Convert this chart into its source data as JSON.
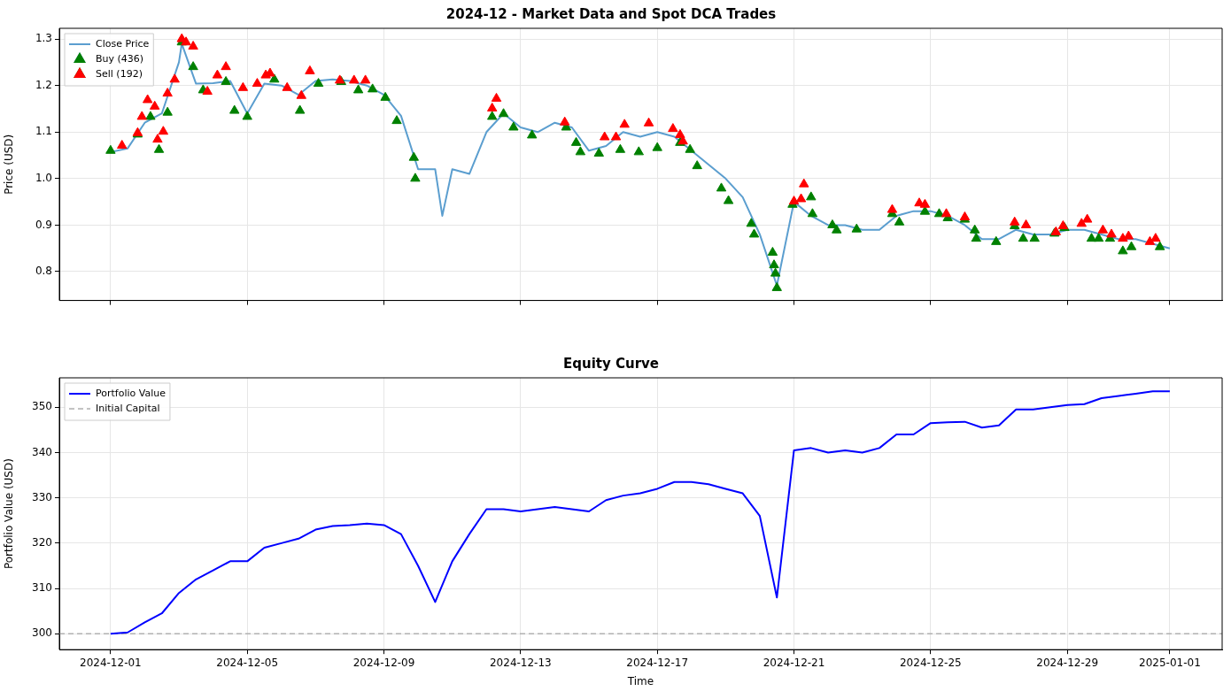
{
  "chart_data": [
    {
      "type": "line",
      "title": "2024-12 - Market Data and Spot DCA Trades",
      "ylabel": "Price (USD)",
      "legend": "top left",
      "grid": true,
      "tick_labels": "y",
      "xlim": [
        "2024-11-29T12:00",
        "2025-01-02T12:45"
      ],
      "xticks": [
        "2024-12-01",
        "2024-12-05",
        "2024-12-09",
        "2024-12-13",
        "2024-12-17",
        "2024-12-21",
        "2024-12-25",
        "2024-12-29",
        "2025-01-01"
      ],
      "ylim": [
        0.738,
        1.323
      ],
      "yticks": [
        0.8,
        0.9,
        {
          "value": 1.0,
          "label": "1.0"
        },
        1.1,
        1.2,
        1.3
      ],
      "series": [
        {
          "name": "Close Price",
          "type": "line",
          "color": "#5b9ecf",
          "marker": "none",
          "x": [
            "2024-12-01T00:00",
            "2024-12-01T12:00",
            "2024-12-02T00:00",
            "2024-12-02T12:00",
            "2024-12-03T00:00",
            "2024-12-03T02:00",
            "2024-12-03T12:00",
            "2024-12-04T00:00",
            "2024-12-04T12:00",
            "2024-12-05T00:00",
            "2024-12-05T12:00",
            "2024-12-06T00:00",
            "2024-12-06T12:00",
            "2024-12-07T00:00",
            "2024-12-07T12:00",
            "2024-12-08T00:00",
            "2024-12-08T12:00",
            "2024-12-09T00:00",
            "2024-12-09T12:00",
            "2024-12-10T00:00",
            "2024-12-10T12:00",
            "2024-12-10T17:00",
            "2024-12-11T00:00",
            "2024-12-11T12:00",
            "2024-12-12T00:00",
            "2024-12-12T12:00",
            "2024-12-13T00:00",
            "2024-12-13T12:00",
            "2024-12-14T00:00",
            "2024-12-14T12:00",
            "2024-12-15T00:00",
            "2024-12-15T12:00",
            "2024-12-16T00:00",
            "2024-12-16T12:00",
            "2024-12-17T00:00",
            "2024-12-17T12:00",
            "2024-12-18T00:00",
            "2024-12-18T12:00",
            "2024-12-19T00:00",
            "2024-12-19T12:00",
            "2024-12-20T00:00",
            "2024-12-20T12:00",
            "2024-12-21T00:00",
            "2024-12-21T12:00",
            "2024-12-22T00:00",
            "2024-12-22T12:00",
            "2024-12-23T00:00",
            "2024-12-23T12:00",
            "2024-12-24T00:00",
            "2024-12-24T12:00",
            "2024-12-25T00:00",
            "2024-12-25T12:00",
            "2024-12-26T00:00",
            "2024-12-26T12:00",
            "2024-12-27T00:00",
            "2024-12-27T12:00",
            "2024-12-28T00:00",
            "2024-12-28T12:00",
            "2024-12-29T00:00",
            "2024-12-29T12:00",
            "2024-12-30T00:00",
            "2024-12-30T12:00",
            "2024-12-31T00:00",
            "2024-12-31T12:00",
            "2025-01-01T00:00"
          ],
          "values": [
            1.057,
            1.065,
            1.12,
            1.14,
            1.25,
            1.29,
            1.204,
            1.205,
            1.21,
            1.14,
            1.204,
            1.2,
            1.18,
            1.21,
            1.213,
            1.21,
            1.2,
            1.18,
            1.135,
            1.02,
            1.02,
            0.92,
            1.02,
            1.01,
            1.1,
            1.14,
            1.11,
            1.1,
            1.12,
            1.11,
            1.06,
            1.07,
            1.1,
            1.09,
            1.1,
            1.09,
            1.06,
            1.03,
            1.0,
            0.96,
            0.88,
            0.77,
            0.95,
            0.92,
            0.9,
            0.9,
            0.89,
            0.89,
            0.92,
            0.93,
            0.93,
            0.92,
            0.9,
            0.87,
            0.87,
            0.89,
            0.88,
            0.88,
            0.89,
            0.89,
            0.88,
            0.87,
            0.87,
            0.86,
            0.85
          ]
        },
        {
          "name": "Buy (436)",
          "type": "scatter",
          "color": "#008000",
          "marker": "triangle",
          "x": [
            "2024-12-01T00:00",
            "2024-12-01T19:00",
            "2024-12-02T04:00",
            "2024-12-02T10:00",
            "2024-12-02T16:00",
            "2024-12-03T02:00",
            "2024-12-03T10:00",
            "2024-12-03T17:00",
            "2024-12-04T09:00",
            "2024-12-04T15:00",
            "2024-12-05T00:00",
            "2024-12-05T19:00",
            "2024-12-06T13:00",
            "2024-12-07T02:00",
            "2024-12-07T18:00",
            "2024-12-08T06:00",
            "2024-12-08T16:00",
            "2024-12-09T01:00",
            "2024-12-09T09:00",
            "2024-12-09T21:00",
            "2024-12-09T22:00",
            "2024-12-12T04:00",
            "2024-12-12T12:00",
            "2024-12-12T19:00",
            "2024-12-13T08:00",
            "2024-12-14T08:00",
            "2024-12-14T15:00",
            "2024-12-14T18:00",
            "2024-12-15T07:00",
            "2024-12-15T22:00",
            "2024-12-16T11:00",
            "2024-12-17T00:00",
            "2024-12-17T16:00",
            "2024-12-17T23:00",
            "2024-12-18T04:00",
            "2024-12-18T21:00",
            "2024-12-19T02:00",
            "2024-12-19T18:00",
            "2024-12-19T20:00",
            "2024-12-20T09:00",
            "2024-12-20T10:00",
            "2024-12-20T11:00",
            "2024-12-20T12:00",
            "2024-12-20T23:00",
            "2024-12-21T12:00",
            "2024-12-21T13:00",
            "2024-12-22T03:00",
            "2024-12-22T06:00",
            "2024-12-22T20:00",
            "2024-12-23T21:00",
            "2024-12-24T02:00",
            "2024-12-24T20:00",
            "2024-12-25T06:00",
            "2024-12-25T12:00",
            "2024-12-26T00:00",
            "2024-12-26T07:00",
            "2024-12-26T08:00",
            "2024-12-26T22:00",
            "2024-12-27T11:00",
            "2024-12-27T17:00",
            "2024-12-28T01:00",
            "2024-12-28T15:00",
            "2024-12-28T22:00",
            "2024-12-29T17:00",
            "2024-12-29T22:00",
            "2024-12-30T06:00",
            "2024-12-30T15:00",
            "2024-12-30T21:00",
            "2024-12-31T17:00"
          ],
          "values": [
            1.06,
            1.095,
            1.133,
            1.062,
            1.142,
            1.293,
            1.24,
            1.19,
            1.208,
            1.146,
            1.133,
            1.213,
            1.146,
            1.204,
            1.208,
            1.19,
            1.192,
            1.174,
            1.124,
            1.045,
            1.0,
            1.133,
            1.139,
            1.11,
            1.093,
            1.11,
            1.077,
            1.057,
            1.054,
            1.062,
            1.057,
            1.066,
            1.077,
            1.062,
            1.027,
            0.979,
            0.952,
            0.903,
            0.88,
            0.841,
            0.814,
            0.796,
            0.765,
            0.944,
            0.96,
            0.924,
            0.9,
            0.889,
            0.891,
            0.924,
            0.906,
            0.929,
            0.924,
            0.915,
            0.912,
            0.889,
            0.871,
            0.864,
            0.898,
            0.871,
            0.871,
            0.882,
            0.894,
            0.871,
            0.871,
            0.871,
            0.844,
            0.853,
            0.853
          ]
        },
        {
          "name": "Sell (192)",
          "type": "scatter",
          "color": "#ff0000",
          "marker": "triangle",
          "x": [
            "2024-12-01T08:00",
            "2024-12-01T19:00",
            "2024-12-01T22:00",
            "2024-12-02T02:00",
            "2024-12-02T07:00",
            "2024-12-02T09:00",
            "2024-12-02T13:00",
            "2024-12-02T16:00",
            "2024-12-02T21:00",
            "2024-12-03T02:00",
            "2024-12-03T05:00",
            "2024-12-03T10:00",
            "2024-12-03T20:00",
            "2024-12-04T03:00",
            "2024-12-04T09:00",
            "2024-12-04T21:00",
            "2024-12-05T07:00",
            "2024-12-05T13:00",
            "2024-12-05T16:00",
            "2024-12-06T04:00",
            "2024-12-06T14:00",
            "2024-12-06T20:00",
            "2024-12-07T17:00",
            "2024-12-08T03:00",
            "2024-12-08T11:00",
            "2024-12-12T04:00",
            "2024-12-12T07:00",
            "2024-12-14T07:00",
            "2024-12-15T11:00",
            "2024-12-15T19:00",
            "2024-12-16T01:00",
            "2024-12-16T18:00",
            "2024-12-17T11:00",
            "2024-12-17T16:00",
            "2024-12-17T18:00",
            "2024-12-21T00:00",
            "2024-12-21T05:00",
            "2024-12-21T07:00",
            "2024-12-23T21:00",
            "2024-12-24T16:00",
            "2024-12-24T20:00",
            "2024-12-25T11:00",
            "2024-12-26T00:00",
            "2024-12-27T11:00",
            "2024-12-27T19:00",
            "2024-12-28T16:00",
            "2024-12-28T21:00",
            "2024-12-29T10:00",
            "2024-12-29T14:00",
            "2024-12-30T01:00",
            "2024-12-30T07:00",
            "2024-12-30T15:00",
            "2024-12-30T19:00",
            "2024-12-31T10:00",
            "2024-12-31T14:00"
          ],
          "values": [
            1.071,
            1.098,
            1.133,
            1.169,
            1.155,
            1.084,
            1.101,
            1.183,
            1.213,
            1.3,
            1.293,
            1.284,
            1.187,
            1.222,
            1.24,
            1.195,
            1.204,
            1.222,
            1.226,
            1.195,
            1.178,
            1.231,
            1.211,
            1.211,
            1.211,
            1.151,
            1.172,
            1.121,
            1.089,
            1.089,
            1.116,
            1.119,
            1.107,
            1.094,
            1.08,
            0.951,
            0.956,
            0.988,
            0.933,
            0.947,
            0.944,
            0.924,
            0.917,
            0.906,
            0.9,
            0.885,
            0.898,
            0.903,
            0.912,
            0.889,
            0.88,
            0.871,
            0.876,
            0.864,
            0.871
          ]
        }
      ]
    },
    {
      "type": "line",
      "title": "Equity Curve",
      "xlabel": "Time",
      "ylabel": "Portfolio Value (USD)",
      "legend": "top left",
      "grid": true,
      "xlim": [
        "2024-11-29T12:00",
        "2025-01-02T12:45"
      ],
      "xticks": [
        "2024-12-01",
        "2024-12-05",
        "2024-12-09",
        "2024-12-13",
        "2024-12-17",
        "2024-12-21",
        "2024-12-25",
        "2024-12-29",
        "2025-01-01"
      ],
      "ylim": [
        296.5,
        356.5
      ],
      "yticks": [
        300,
        310,
        320,
        330,
        340,
        350
      ],
      "x": [
        "2024-12-01T00:00",
        "2024-12-01T12:00",
        "2024-12-02T00:00",
        "2024-12-02T12:00",
        "2024-12-03T00:00",
        "2024-12-03T12:00",
        "2024-12-04T00:00",
        "2024-12-04T12:00",
        "2024-12-05T00:00",
        "2024-12-05T12:00",
        "2024-12-06T00:00",
        "2024-12-06T12:00",
        "2024-12-07T00:00",
        "2024-12-07T12:00",
        "2024-12-08T00:00",
        "2024-12-08T12:00",
        "2024-12-09T00:00",
        "2024-12-09T12:00",
        "2024-12-10T00:00",
        "2024-12-10T12:00",
        "2024-12-11T00:00",
        "2024-12-11T12:00",
        "2024-12-12T00:00",
        "2024-12-12T12:00",
        "2024-12-13T00:00",
        "2024-12-13T12:00",
        "2024-12-14T00:00",
        "2024-12-14T12:00",
        "2024-12-15T00:00",
        "2024-12-15T12:00",
        "2024-12-16T00:00",
        "2024-12-16T12:00",
        "2024-12-17T00:00",
        "2024-12-17T12:00",
        "2024-12-18T00:00",
        "2024-12-18T12:00",
        "2024-12-19T00:00",
        "2024-12-19T12:00",
        "2024-12-20T00:00",
        "2024-12-20T12:00",
        "2024-12-21T00:00",
        "2024-12-21T12:00",
        "2024-12-22T00:00",
        "2024-12-22T12:00",
        "2024-12-23T00:00",
        "2024-12-23T12:00",
        "2024-12-24T00:00",
        "2024-12-24T12:00",
        "2024-12-25T00:00",
        "2024-12-25T12:00",
        "2024-12-26T00:00",
        "2024-12-26T12:00",
        "2024-12-27T00:00",
        "2024-12-27T12:00",
        "2024-12-28T00:00",
        "2024-12-28T12:00",
        "2024-12-29T00:00",
        "2024-12-29T12:00",
        "2024-12-30T00:00",
        "2024-12-30T12:00",
        "2024-12-31T00:00",
        "2024-12-31T12:00",
        "2025-01-01T00:00"
      ],
      "series": [
        {
          "name": "Portfolio Value",
          "color": "#0000ff",
          "marker": "none",
          "values": [
            300,
            300.3,
            302.5,
            304.5,
            309,
            312,
            314,
            316,
            316,
            319,
            320,
            321,
            323,
            323.8,
            324,
            324.3,
            324,
            322,
            315,
            307,
            316,
            322,
            327.5,
            327.5,
            327,
            327.5,
            328,
            327.5,
            327,
            329.5,
            330.5,
            331,
            332,
            333.5,
            333.5,
            333,
            332,
            331,
            326,
            308,
            340.5,
            341,
            340,
            340.5,
            340,
            341,
            344,
            344,
            346.5,
            346.7,
            346.8,
            345.5,
            346,
            349.5,
            349.5,
            350,
            350.5,
            350.7,
            352,
            352.5,
            353,
            353.5,
            353.5
          ]
        }
      ],
      "ref_lines": [
        {
          "axis": "y",
          "value": 300,
          "label": "Initial Capital",
          "color": "#b0b0b0",
          "line_style": "dashed"
        }
      ]
    }
  ]
}
